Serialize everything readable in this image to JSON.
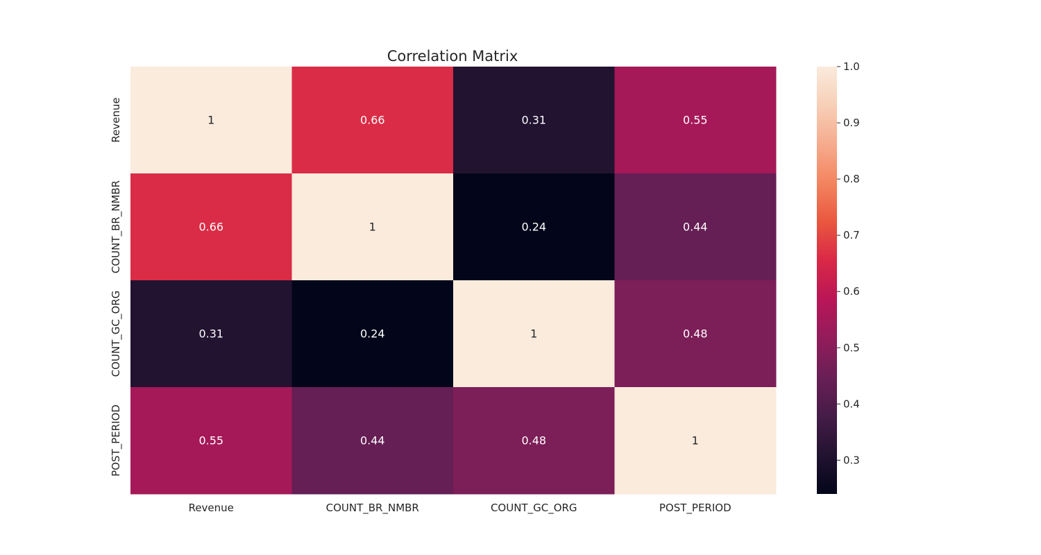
{
  "chart_data": {
    "type": "heatmap",
    "title": "Correlation Matrix",
    "x_categories": [
      "Revenue",
      "COUNT_BR_NMBR",
      "COUNT_GC_ORG",
      "POST_PERIOD"
    ],
    "y_categories": [
      "Revenue",
      "COUNT_BR_NMBR",
      "COUNT_GC_ORG",
      "POST_PERIOD"
    ],
    "values": [
      [
        1,
        0.66,
        0.31,
        0.55
      ],
      [
        0.66,
        1,
        0.24,
        0.44
      ],
      [
        0.31,
        0.24,
        1,
        0.48
      ],
      [
        0.55,
        0.44,
        0.48,
        1
      ]
    ],
    "annotations": [
      [
        "1",
        "0.66",
        "0.31",
        "0.55"
      ],
      [
        "0.66",
        "1",
        "0.24",
        "0.44"
      ],
      [
        "0.31",
        "0.24",
        "1",
        "0.48"
      ],
      [
        "0.55",
        "0.44",
        "0.48",
        "1"
      ]
    ],
    "colorbar": {
      "range": [
        0.24,
        1.0
      ],
      "ticks": [
        0.3,
        0.4,
        0.5,
        0.6,
        0.7,
        0.8,
        0.9,
        1.0
      ],
      "tick_labels": [
        "0.3",
        "0.4",
        "0.5",
        "0.6",
        "0.7",
        "0.8",
        "0.9",
        "1.0"
      ]
    },
    "colormap": [
      "#03051a",
      "#221331",
      "#451c47",
      "#691f55",
      "#921c5b",
      "#b91657",
      "#d92847",
      "#e9573f",
      "#f3845f",
      "#f6ab8d",
      "#f7cfb7",
      "#faebdd"
    ],
    "grid": false
  }
}
